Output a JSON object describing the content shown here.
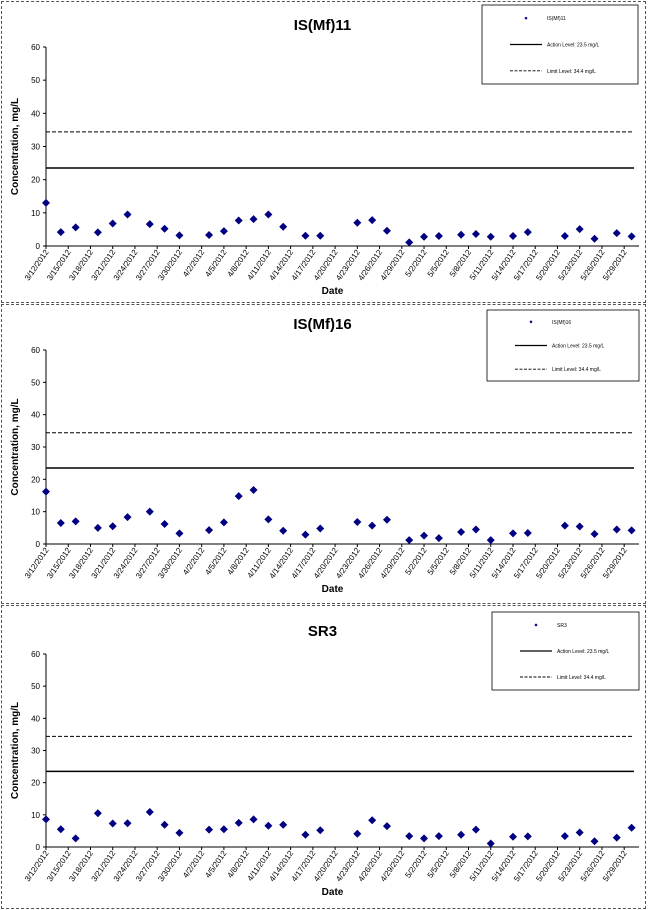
{
  "chart_data": [
    {
      "type": "scatter",
      "title": "IS(Mf)11",
      "xlabel": "Date",
      "ylabel": "Concentration, mg/L",
      "ylim": [
        0,
        60
      ],
      "yticks": [
        0,
        10,
        20,
        30,
        40,
        50,
        60
      ],
      "xlim": [
        "3/12/2012",
        "5/31/2012"
      ],
      "xticks": [
        "3/12/2012",
        "3/15/2012",
        "3/18/2012",
        "3/21/2012",
        "3/24/2012",
        "3/27/2012",
        "3/30/2012",
        "4/2/2012",
        "4/5/2012",
        "4/8/2012",
        "4/11/2012",
        "4/14/2012",
        "4/17/2012",
        "4/20/2012",
        "4/23/2012",
        "4/26/2012",
        "4/29/2012",
        "5/2/2012",
        "5/5/2012",
        "5/8/2012",
        "5/11/2012",
        "5/14/2012",
        "5/17/2012",
        "5/20/2012",
        "5/23/2012",
        "5/26/2012",
        "5/29/2012"
      ],
      "grid": false,
      "legend_position": "top-right",
      "series": [
        {
          "name": "IS(Mf)11",
          "kind": "points",
          "color": "#000080",
          "x": [
            "3/12/2012",
            "3/14/2012",
            "3/16/2012",
            "3/19/2012",
            "3/21/2012",
            "3/23/2012",
            "3/26/2012",
            "3/28/2012",
            "3/30/2012",
            "4/3/2012",
            "4/5/2012",
            "4/7/2012",
            "4/9/2012",
            "4/11/2012",
            "4/13/2012",
            "4/16/2012",
            "4/18/2012",
            "4/23/2012",
            "4/25/2012",
            "4/27/2012",
            "4/30/2012",
            "5/2/2012",
            "5/4/2012",
            "5/7/2012",
            "5/9/2012",
            "5/11/2012",
            "5/14/2012",
            "5/16/2012",
            "5/21/2012",
            "5/23/2012",
            "5/25/2012",
            "5/28/2012",
            "5/30/2012"
          ],
          "y": [
            13,
            4.2,
            5.6,
            4.1,
            6.8,
            9.5,
            6.6,
            5.2,
            3.2,
            3.3,
            4.5,
            7.7,
            8.1,
            9.5,
            5.8,
            3.1,
            3.1,
            7,
            7.8,
            4.6,
            1.1,
            2.8,
            3,
            3.4,
            3.6,
            2.8,
            3,
            4.2,
            3,
            5.1,
            2.2,
            3.9,
            2.9
          ]
        },
        {
          "name": "Action Level: 23.5 mg/L",
          "kind": "solid",
          "value": 23.5
        },
        {
          "name": "Limit Level: 34.4 mg/L",
          "kind": "dashed",
          "value": 34.4
        }
      ]
    },
    {
      "type": "scatter",
      "title": "IS(Mf)16",
      "xlabel": "Date",
      "ylabel": "Concentration, mg/L",
      "ylim": [
        0,
        60
      ],
      "yticks": [
        0,
        10,
        20,
        30,
        40,
        50,
        60
      ],
      "xlim": [
        "3/12/2012",
        "5/31/2012"
      ],
      "xticks": [
        "3/12/2012",
        "3/15/2012",
        "3/18/2012",
        "3/21/2012",
        "3/24/2012",
        "3/27/2012",
        "3/30/2012",
        "4/2/2012",
        "4/5/2012",
        "4/8/2012",
        "4/11/2012",
        "4/14/2012",
        "4/17/2012",
        "4/20/2012",
        "4/23/2012",
        "4/26/2012",
        "4/29/2012",
        "5/2/2012",
        "5/5/2012",
        "5/8/2012",
        "5/11/2012",
        "5/14/2012",
        "5/17/2012",
        "5/20/2012",
        "5/23/2012",
        "5/26/2012",
        "5/29/2012"
      ],
      "grid": false,
      "legend_position": "top-right",
      "series": [
        {
          "name": "IS(Mf)16",
          "kind": "points",
          "color": "#000080",
          "x": [
            "3/12/2012",
            "3/14/2012",
            "3/16/2012",
            "3/19/2012",
            "3/21/2012",
            "3/23/2012",
            "3/26/2012",
            "3/28/2012",
            "3/30/2012",
            "4/3/2012",
            "4/5/2012",
            "4/7/2012",
            "4/9/2012",
            "4/11/2012",
            "4/13/2012",
            "4/16/2012",
            "4/18/2012",
            "4/23/2012",
            "4/25/2012",
            "4/27/2012",
            "4/30/2012",
            "5/2/2012",
            "5/4/2012",
            "5/7/2012",
            "5/9/2012",
            "5/11/2012",
            "5/14/2012",
            "5/16/2012",
            "5/21/2012",
            "5/23/2012",
            "5/25/2012",
            "5/28/2012",
            "5/30/2012"
          ],
          "y": [
            16.2,
            6.5,
            7,
            5,
            5.5,
            8.3,
            10,
            6.2,
            3.3,
            4.3,
            6.7,
            14.8,
            16.7,
            7.6,
            4.1,
            2.9,
            4.8,
            6.8,
            5.7,
            7.5,
            1.2,
            2.6,
            1.8,
            3.7,
            4.5,
            1.2,
            3.3,
            3.4,
            5.7,
            5.4,
            3.1,
            4.5,
            4.2
          ]
        },
        {
          "name": "Action Level: 23.5 mg/L",
          "kind": "solid",
          "value": 23.5
        },
        {
          "name": "Limit Level: 34.4 mg/L",
          "kind": "dashed",
          "value": 34.4
        }
      ]
    },
    {
      "type": "scatter",
      "title": "SR3",
      "xlabel": "Date",
      "ylabel": "Concentration, mg/L",
      "ylim": [
        0,
        60
      ],
      "yticks": [
        0,
        10,
        20,
        30,
        40,
        50,
        60
      ],
      "xlim": [
        "3/12/2012",
        "5/31/2012"
      ],
      "xticks": [
        "3/12/2012",
        "3/15/2012",
        "3/18/2012",
        "3/21/2012",
        "3/24/2012",
        "3/27/2012",
        "3/30/2012",
        "4/2/2012",
        "4/5/2012",
        "4/8/2012",
        "4/11/2012",
        "4/14/2012",
        "4/17/2012",
        "4/20/2012",
        "4/23/2012",
        "4/26/2012",
        "4/29/2012",
        "5/2/2012",
        "5/5/2012",
        "5/8/2012",
        "5/11/2012",
        "5/14/2012",
        "5/17/2012",
        "5/20/2012",
        "5/23/2012",
        "5/26/2012",
        "5/29/2012"
      ],
      "grid": false,
      "legend_position": "top-right",
      "series": [
        {
          "name": "SR3",
          "kind": "points",
          "color": "#000080",
          "x": [
            "3/12/2012",
            "3/14/2012",
            "3/16/2012",
            "3/19/2012",
            "3/21/2012",
            "3/23/2012",
            "3/26/2012",
            "3/28/2012",
            "3/30/2012",
            "4/3/2012",
            "4/5/2012",
            "4/7/2012",
            "4/9/2012",
            "4/11/2012",
            "4/13/2012",
            "4/16/2012",
            "4/18/2012",
            "4/23/2012",
            "4/25/2012",
            "4/27/2012",
            "4/30/2012",
            "5/2/2012",
            "5/4/2012",
            "5/7/2012",
            "5/9/2012",
            "5/11/2012",
            "5/14/2012",
            "5/16/2012",
            "5/21/2012",
            "5/23/2012",
            "5/25/2012",
            "5/28/2012",
            "5/30/2012"
          ],
          "y": [
            8.6,
            5.5,
            2.7,
            10.5,
            7.3,
            7.4,
            10.9,
            6.9,
            4.4,
            5.4,
            5.5,
            7.5,
            8.6,
            6.6,
            6.9,
            3.8,
            5.2,
            4.1,
            8.3,
            6.5,
            3.4,
            2.7,
            3.4,
            3.8,
            5.4,
            1.1,
            3.2,
            3.3,
            3.4,
            4.5,
            1.8,
            2.9,
            6
          ]
        },
        {
          "name": "Action Level: 23.5 mg/L",
          "kind": "solid",
          "value": 23.5
        },
        {
          "name": "Limit Level: 34.4 mg/L",
          "kind": "dashed",
          "value": 34.4
        }
      ]
    }
  ]
}
